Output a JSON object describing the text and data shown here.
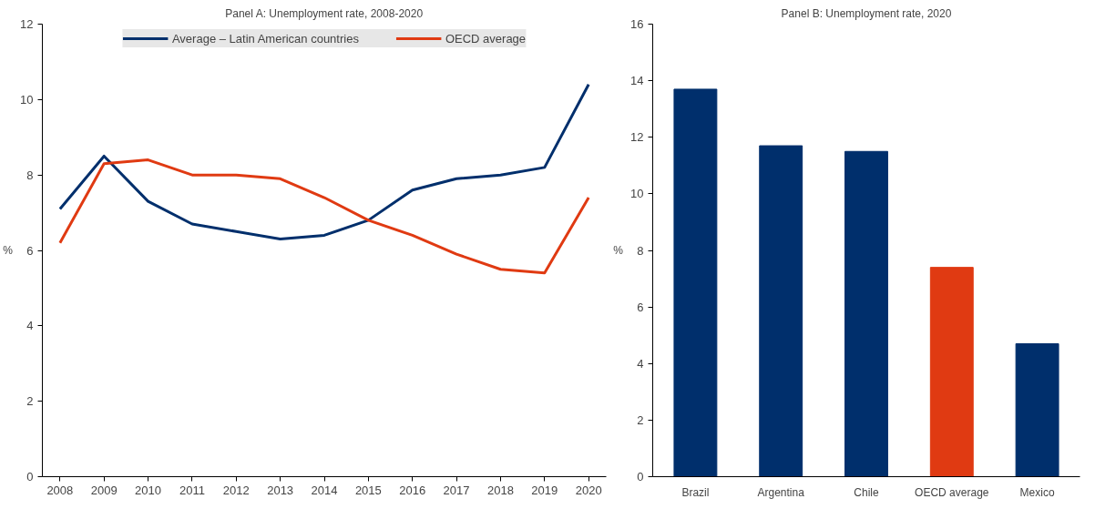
{
  "chart_data": [
    {
      "type": "line",
      "title": "Panel A: Unemployment rate, 2008-2020",
      "ylabel": "%",
      "x": [
        2008,
        2009,
        2010,
        2011,
        2012,
        2013,
        2014,
        2015,
        2016,
        2017,
        2018,
        2019,
        2020
      ],
      "series": [
        {
          "name": "Average – Latin American countries",
          "color": "#002f6c",
          "values": [
            7.1,
            8.5,
            7.3,
            6.7,
            6.5,
            6.3,
            6.4,
            6.8,
            7.6,
            7.9,
            8.0,
            8.2,
            10.4
          ]
        },
        {
          "name": "OECD average",
          "color": "#e03a12",
          "values": [
            6.2,
            8.3,
            8.4,
            8.0,
            8.0,
            7.9,
            7.4,
            6.8,
            6.4,
            5.9,
            5.5,
            5.4,
            7.4
          ]
        }
      ],
      "xlim": [
        2007.6,
        2020.4
      ],
      "xticks": [
        2008,
        2009,
        2010,
        2011,
        2012,
        2013,
        2014,
        2015,
        2016,
        2017,
        2018,
        2019,
        2020
      ],
      "ylim": [
        0,
        12
      ],
      "yticks": [
        0,
        2,
        4,
        6,
        8,
        10,
        12
      ],
      "grid": false,
      "legend": "top",
      "marker": "none",
      "line_style": "solid"
    },
    {
      "type": "bar",
      "title": "Panel B: Unemployment rate, 2020",
      "ylabel": "%",
      "categories": [
        "Brazil",
        "Argentina",
        "Chile",
        "OECD average",
        "Mexico"
      ],
      "values": [
        13.7,
        11.7,
        11.5,
        7.4,
        4.7
      ],
      "colors": [
        "#002f6c",
        "#002f6c",
        "#002f6c",
        "#e03a12",
        "#002f6c"
      ],
      "ylim": [
        0,
        16
      ],
      "yticks": [
        0,
        2,
        4,
        6,
        8,
        10,
        12,
        14,
        16
      ],
      "grid": false
    }
  ]
}
